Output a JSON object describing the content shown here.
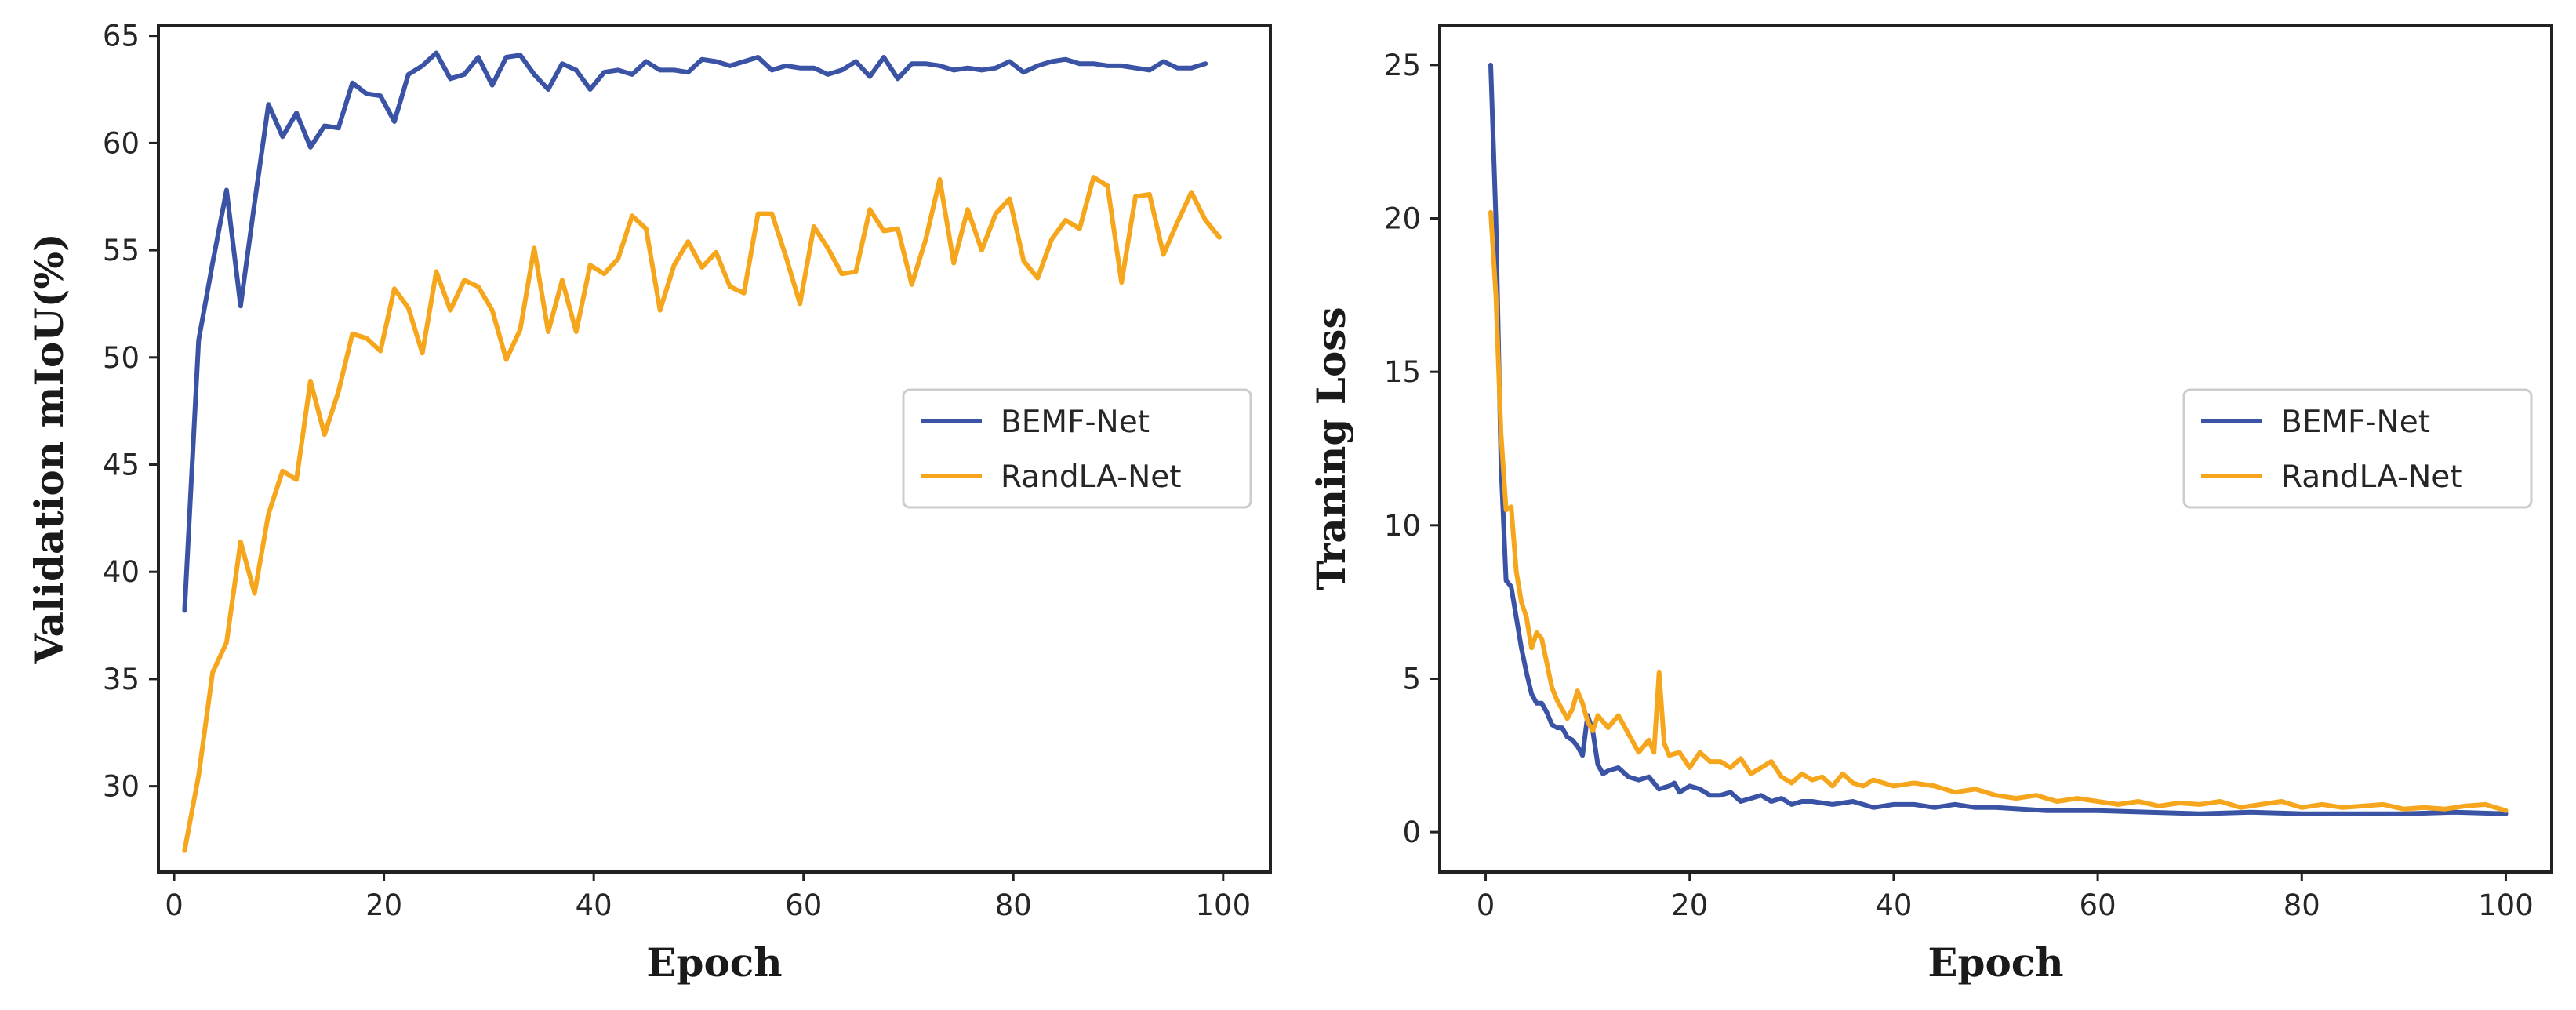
{
  "colors": {
    "bemf": "#3a53a4",
    "randla": "#f6a61c",
    "axis": "#222222",
    "legendBorder": "#cccccc"
  },
  "chart_data": [
    {
      "type": "line",
      "xlabel": "Epoch",
      "ylabel": "Validation mIoU(%)",
      "xlim": [
        -1.5,
        104.5
      ],
      "ylim": [
        26,
        65.5
      ],
      "xticks": [
        0,
        20,
        40,
        60,
        80,
        100
      ],
      "yticks": [
        30,
        35,
        40,
        45,
        50,
        55,
        60,
        65
      ],
      "legend": "center-right",
      "series": [
        {
          "name": "BEMF-Net",
          "x_start": 1,
          "x_step": 1.333,
          "values": [
            38.2,
            50.8,
            54.4,
            57.8,
            52.4,
            57.2,
            61.8,
            60.3,
            61.4,
            59.8,
            60.8,
            60.7,
            62.8,
            62.3,
            62.2,
            61.0,
            63.2,
            63.6,
            64.2,
            63.0,
            63.2,
            64.0,
            62.7,
            64.0,
            64.1,
            63.2,
            62.5,
            63.7,
            63.4,
            62.5,
            63.3,
            63.4,
            63.2,
            63.8,
            63.4,
            63.4,
            63.3,
            63.9,
            63.8,
            63.6,
            63.8,
            64.0,
            63.4,
            63.6,
            63.5,
            63.5,
            63.2,
            63.4,
            63.8,
            63.1,
            64.0,
            63.0,
            63.7,
            63.7,
            63.6,
            63.4,
            63.5,
            63.4,
            63.5,
            63.8,
            63.3,
            63.6,
            63.8,
            63.9,
            63.7,
            63.7,
            63.6,
            63.6,
            63.5,
            63.4,
            63.8,
            63.5,
            63.5,
            63.7
          ]
        },
        {
          "name": "RandLA-Net",
          "x_start": 1,
          "x_step": 1.333,
          "values": [
            27.0,
            30.5,
            35.3,
            36.7,
            41.4,
            39.0,
            42.7,
            44.7,
            44.3,
            48.9,
            46.4,
            48.4,
            51.1,
            50.9,
            50.3,
            53.2,
            52.3,
            50.2,
            54.0,
            52.2,
            53.6,
            53.3,
            52.2,
            49.9,
            51.3,
            55.1,
            51.2,
            53.6,
            51.2,
            54.3,
            53.9,
            54.6,
            56.6,
            56.0,
            52.2,
            54.3,
            55.4,
            54.2,
            54.9,
            53.3,
            53.0,
            56.7,
            56.7,
            54.7,
            52.5,
            56.1,
            55.1,
            53.9,
            54.0,
            56.9,
            55.9,
            56.0,
            53.4,
            55.5,
            58.3,
            54.4,
            56.9,
            55.0,
            56.7,
            57.4,
            54.5,
            53.7,
            55.5,
            56.4,
            56.0,
            58.4,
            58.0,
            53.5,
            57.5,
            57.6,
            54.8,
            56.3,
            57.7,
            56.4,
            55.6
          ]
        }
      ]
    },
    {
      "type": "line",
      "xlabel": "Epoch",
      "ylabel": "Traning Loss",
      "xlim": [
        -4.5,
        104.5
      ],
      "ylim": [
        -1.3,
        26.3
      ],
      "xticks": [
        0,
        20,
        40,
        60,
        80,
        100
      ],
      "yticks": [
        0,
        5,
        10,
        15,
        20,
        25
      ],
      "legend": "center-right",
      "series": [
        {
          "name": "BEMF-Net",
          "points": [
            [
              0.5,
              25.0
            ],
            [
              1.0,
              20.0
            ],
            [
              1.5,
              12.0
            ],
            [
              2.0,
              8.2
            ],
            [
              2.5,
              8.0
            ],
            [
              3.0,
              7.0
            ],
            [
              3.5,
              6.0
            ],
            [
              4.0,
              5.2
            ],
            [
              4.5,
              4.5
            ],
            [
              5.0,
              4.2
            ],
            [
              5.5,
              4.2
            ],
            [
              6.0,
              3.9
            ],
            [
              6.5,
              3.5
            ],
            [
              7.0,
              3.4
            ],
            [
              7.5,
              3.4
            ],
            [
              8.0,
              3.1
            ],
            [
              8.5,
              3.0
            ],
            [
              9.0,
              2.8
            ],
            [
              9.5,
              2.5
            ],
            [
              10.0,
              3.8
            ],
            [
              10.5,
              3.3
            ],
            [
              11.0,
              2.2
            ],
            [
              11.5,
              1.9
            ],
            [
              12.0,
              2.0
            ],
            [
              13.0,
              2.1
            ],
            [
              14.0,
              1.8
            ],
            [
              15.0,
              1.7
            ],
            [
              16.0,
              1.8
            ],
            [
              17.0,
              1.4
            ],
            [
              18.0,
              1.5
            ],
            [
              18.5,
              1.6
            ],
            [
              19.0,
              1.3
            ],
            [
              20.0,
              1.5
            ],
            [
              21.0,
              1.4
            ],
            [
              22.0,
              1.2
            ],
            [
              23.0,
              1.2
            ],
            [
              24.0,
              1.3
            ],
            [
              25.0,
              1.0
            ],
            [
              26.0,
              1.1
            ],
            [
              27.0,
              1.2
            ],
            [
              28.0,
              1.0
            ],
            [
              29.0,
              1.1
            ],
            [
              30.0,
              0.9
            ],
            [
              31.0,
              1.0
            ],
            [
              32.0,
              1.0
            ],
            [
              34.0,
              0.9
            ],
            [
              36.0,
              1.0
            ],
            [
              38.0,
              0.8
            ],
            [
              40.0,
              0.9
            ],
            [
              42.0,
              0.9
            ],
            [
              44.0,
              0.8
            ],
            [
              46.0,
              0.9
            ],
            [
              48.0,
              0.8
            ],
            [
              50.0,
              0.8
            ],
            [
              55.0,
              0.7
            ],
            [
              60.0,
              0.7
            ],
            [
              65.0,
              0.65
            ],
            [
              70.0,
              0.6
            ],
            [
              75.0,
              0.65
            ],
            [
              80.0,
              0.6
            ],
            [
              85.0,
              0.6
            ],
            [
              90.0,
              0.6
            ],
            [
              95.0,
              0.65
            ],
            [
              100.0,
              0.6
            ]
          ]
        },
        {
          "name": "RandLA-Net",
          "points": [
            [
              0.5,
              20.2
            ],
            [
              1.0,
              17.5
            ],
            [
              1.5,
              13.0
            ],
            [
              2.0,
              10.5
            ],
            [
              2.5,
              10.6
            ],
            [
              3.0,
              8.5
            ],
            [
              3.5,
              7.5
            ],
            [
              4.0,
              7.0
            ],
            [
              4.5,
              6.0
            ],
            [
              5.0,
              6.5
            ],
            [
              5.5,
              6.3
            ],
            [
              6.0,
              5.5
            ],
            [
              6.5,
              4.7
            ],
            [
              7.0,
              4.3
            ],
            [
              7.5,
              4.0
            ],
            [
              8.0,
              3.7
            ],
            [
              8.5,
              4.0
            ],
            [
              9.0,
              4.6
            ],
            [
              9.5,
              4.2
            ],
            [
              10.0,
              3.6
            ],
            [
              10.5,
              3.3
            ],
            [
              11.0,
              3.8
            ],
            [
              12.0,
              3.4
            ],
            [
              13.0,
              3.8
            ],
            [
              14.0,
              3.2
            ],
            [
              15.0,
              2.6
            ],
            [
              16.0,
              3.0
            ],
            [
              16.5,
              2.6
            ],
            [
              17.0,
              5.2
            ],
            [
              17.5,
              2.9
            ],
            [
              18.0,
              2.5
            ],
            [
              19.0,
              2.6
            ],
            [
              20.0,
              2.1
            ],
            [
              21.0,
              2.6
            ],
            [
              22.0,
              2.3
            ],
            [
              23.0,
              2.3
            ],
            [
              24.0,
              2.1
            ],
            [
              25.0,
              2.4
            ],
            [
              26.0,
              1.9
            ],
            [
              27.0,
              2.1
            ],
            [
              28.0,
              2.3
            ],
            [
              29.0,
              1.8
            ],
            [
              30.0,
              1.6
            ],
            [
              31.0,
              1.9
            ],
            [
              32.0,
              1.7
            ],
            [
              33.0,
              1.8
            ],
            [
              34.0,
              1.5
            ],
            [
              35.0,
              1.9
            ],
            [
              36.0,
              1.6
            ],
            [
              37.0,
              1.5
            ],
            [
              38.0,
              1.7
            ],
            [
              39.0,
              1.6
            ],
            [
              40.0,
              1.5
            ],
            [
              42.0,
              1.6
            ],
            [
              44.0,
              1.5
            ],
            [
              46.0,
              1.3
            ],
            [
              48.0,
              1.4
            ],
            [
              50.0,
              1.2
            ],
            [
              52.0,
              1.1
            ],
            [
              54.0,
              1.2
            ],
            [
              56.0,
              1.0
            ],
            [
              58.0,
              1.1
            ],
            [
              60.0,
              1.0
            ],
            [
              62.0,
              0.9
            ],
            [
              64.0,
              1.0
            ],
            [
              66.0,
              0.85
            ],
            [
              68.0,
              0.95
            ],
            [
              70.0,
              0.9
            ],
            [
              72.0,
              1.0
            ],
            [
              74.0,
              0.8
            ],
            [
              76.0,
              0.9
            ],
            [
              78.0,
              1.0
            ],
            [
              80.0,
              0.8
            ],
            [
              82.0,
              0.9
            ],
            [
              84.0,
              0.8
            ],
            [
              86.0,
              0.85
            ],
            [
              88.0,
              0.9
            ],
            [
              90.0,
              0.75
            ],
            [
              92.0,
              0.8
            ],
            [
              94.0,
              0.75
            ],
            [
              96.0,
              0.85
            ],
            [
              98.0,
              0.9
            ],
            [
              100.0,
              0.7
            ]
          ]
        }
      ]
    }
  ]
}
